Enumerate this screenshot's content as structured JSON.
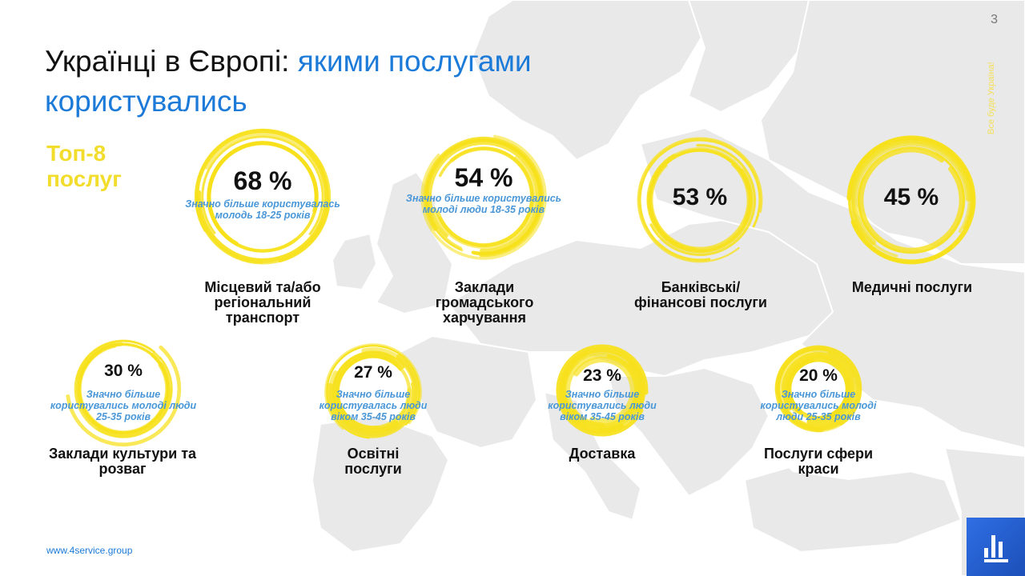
{
  "slide_number": "3",
  "side_text": "Все буде Україна!",
  "title_part1": "Українці в Європі: ",
  "title_part2": "якими послугами користувались",
  "top8_label": "Топ-8 послуг",
  "footer_url": "www.4service.group",
  "colors": {
    "accent": "#1c7ad8",
    "ring": "#f7e11c",
    "note": "#4a97d8",
    "map": "#e9e9e9"
  },
  "services": [
    {
      "percent": "68 %",
      "note": "Значно більше користувалась молодь  18-25 років",
      "label": "Місцевий та/або регіональний транспорт"
    },
    {
      "percent": "54 %",
      "note": "Значно більше користувались молоді люди 18-35 років",
      "label": "Заклади громадського харчування"
    },
    {
      "percent": "53 %",
      "note": "",
      "label": "Банківські/ фінансові послуги"
    },
    {
      "percent": "45 %",
      "note": "",
      "label": "Медичні послуги"
    },
    {
      "percent": "30 %",
      "note": "Значно більше користувались молоді люди 25-35 років",
      "label": "Заклади культури та розваг"
    },
    {
      "percent": "27 %",
      "note": "Значно більше користувалась люди віком  35-45 років",
      "label": "Освітні послуги"
    },
    {
      "percent": "23 %",
      "note": "Значно більше користувались люди віком 35-45 років",
      "label": "Доставка"
    },
    {
      "percent": "20 %",
      "note": "Значно більше користувались молоді люди 25-35 років",
      "label": "Послуги сфери краси"
    }
  ]
}
